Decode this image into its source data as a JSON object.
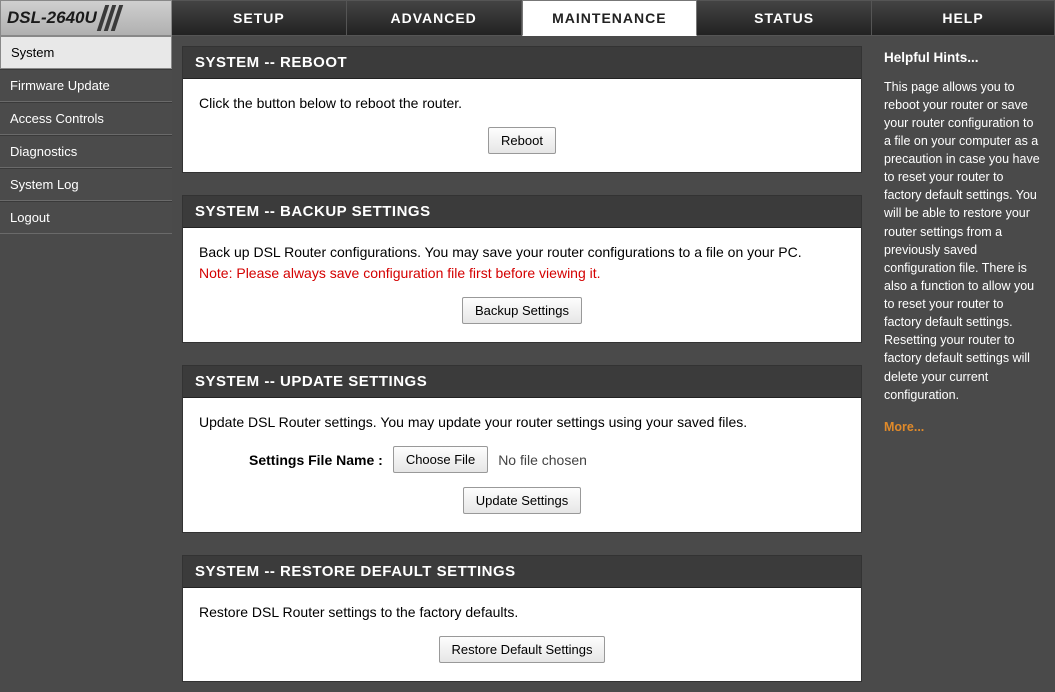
{
  "logo": {
    "model": "DSL-2640U"
  },
  "tabs": {
    "setup": "SETUP",
    "advanced": "ADVANCED",
    "maintenance": "MAINTENANCE",
    "status": "STATUS",
    "help": "HELP"
  },
  "sidebar": {
    "items": [
      {
        "label": "System",
        "active": true
      },
      {
        "label": "Firmware Update",
        "active": false
      },
      {
        "label": "Access Controls",
        "active": false
      },
      {
        "label": "Diagnostics",
        "active": false
      },
      {
        "label": "System Log",
        "active": false
      },
      {
        "label": "Logout",
        "active": false
      }
    ]
  },
  "panels": {
    "reboot": {
      "title": "SYSTEM -- REBOOT",
      "text": "Click the button below to reboot the router.",
      "button": "Reboot"
    },
    "backup": {
      "title": "SYSTEM -- BACKUP SETTINGS",
      "text": "Back up DSL Router configurations. You may save your router configurations to a file on your PC.",
      "note": "Note: Please always save configuration file first before viewing it.",
      "button": "Backup Settings"
    },
    "update": {
      "title": "SYSTEM -- UPDATE SETTINGS",
      "text": "Update DSL Router settings. You may update your router settings using your saved files.",
      "file_label": "Settings File Name :",
      "choose_btn": "Choose File",
      "file_status": "No file chosen",
      "button": "Update Settings"
    },
    "restore": {
      "title": "SYSTEM -- RESTORE DEFAULT SETTINGS",
      "text": "Restore DSL Router settings to the factory defaults.",
      "button": "Restore Default Settings"
    }
  },
  "help": {
    "title": "Helpful Hints...",
    "body": "This page allows you to reboot your router or save your router configuration to a file on your computer as a precaution in case you have to reset your router to factory default settings. You will be able to restore your router settings from a previously saved configuration file. There is also a function to allow you to reset your router to factory default settings. Resetting your router to factory default settings will delete your current configuration.",
    "more": "More..."
  },
  "colors": {
    "header_bg": "#3b3b3b",
    "body_bg": "#4a4a4a",
    "note_red": "#d40000",
    "more_link": "#e08a2a"
  }
}
